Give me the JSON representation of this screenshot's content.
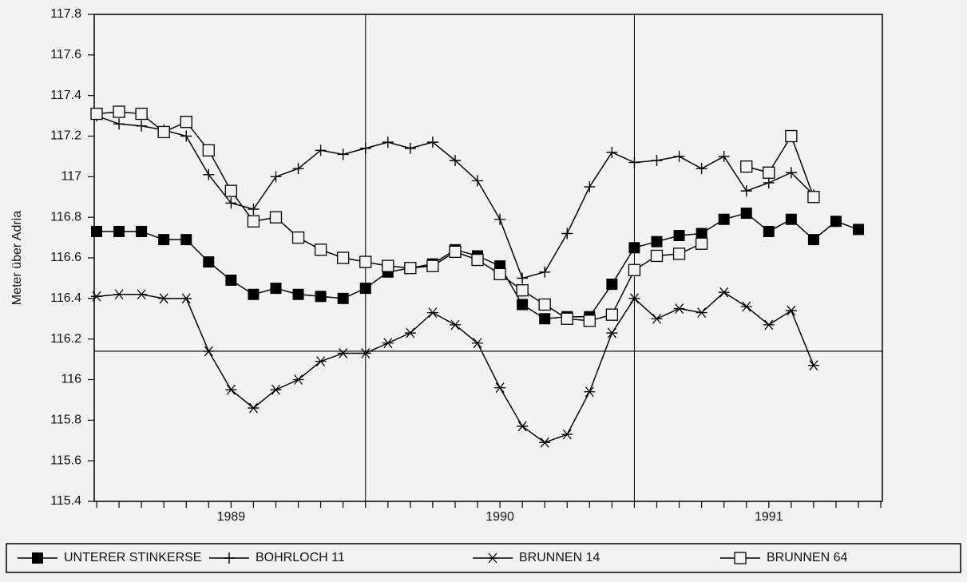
{
  "chart_data": {
    "type": "line",
    "y_label": "Meter über Adria",
    "categories": [
      null,
      null,
      null,
      null,
      null,
      null,
      "1989",
      null,
      null,
      null,
      null,
      null,
      null,
      null,
      null,
      null,
      null,
      null,
      "1990",
      null,
      null,
      null,
      null,
      null,
      null,
      null,
      null,
      null,
      null,
      null,
      "1991",
      null,
      null,
      null,
      null,
      null
    ],
    "ylim": [
      115.4,
      117.8
    ],
    "yticks": [
      115.4,
      115.6,
      115.8,
      116,
      116.2,
      116.4,
      116.6,
      116.8,
      117,
      117.2,
      117.4,
      117.6,
      117.8
    ],
    "reference_line": 116.14,
    "series": [
      {
        "name": "UNTERER STINKERSE",
        "color": "#000000",
        "marker": "filled-square",
        "values": [
          116.73,
          116.73,
          116.73,
          116.69,
          116.69,
          116.58,
          116.49,
          116.42,
          116.45,
          116.42,
          116.41,
          116.4,
          116.45,
          116.53,
          116.55,
          116.57,
          116.64,
          116.61,
          116.56,
          116.37,
          116.3,
          116.31,
          116.31,
          116.47,
          116.65,
          116.68,
          116.71,
          116.72,
          116.79,
          116.82,
          116.73,
          116.79,
          116.69,
          116.78,
          116.74,
          null
        ]
      },
      {
        "name": "BOHRLOCH 11",
        "color": "#000000",
        "marker": "plus",
        "values": [
          117.3,
          117.26,
          117.25,
          117.23,
          117.2,
          117.01,
          116.87,
          116.84,
          117.0,
          117.04,
          117.13,
          117.11,
          117.14,
          117.17,
          117.14,
          117.17,
          117.08,
          116.98,
          116.79,
          116.5,
          116.53,
          116.72,
          116.95,
          117.12,
          117.07,
          117.08,
          117.1,
          117.04,
          117.1,
          116.93,
          116.97,
          117.02,
          116.91,
          null,
          null,
          null
        ]
      },
      {
        "name": "BRUNNEN 14",
        "color": "#000000",
        "marker": "asterisk",
        "values": [
          116.41,
          116.42,
          116.42,
          116.4,
          116.4,
          116.14,
          115.95,
          115.86,
          115.95,
          116.0,
          116.09,
          116.13,
          116.13,
          116.18,
          116.23,
          116.33,
          116.27,
          116.18,
          115.96,
          115.77,
          115.69,
          115.73,
          115.94,
          116.23,
          116.4,
          116.3,
          116.35,
          116.33,
          116.43,
          116.36,
          116.27,
          116.34,
          116.07,
          null,
          null,
          null
        ]
      },
      {
        "name": "BRUNNEN 64",
        "color": "#000000",
        "marker": "open-square",
        "values": [
          117.31,
          117.32,
          117.31,
          117.22,
          117.27,
          117.13,
          116.93,
          116.78,
          116.8,
          116.7,
          116.64,
          116.6,
          116.58,
          116.56,
          116.55,
          116.56,
          116.63,
          116.59,
          116.52,
          116.44,
          116.37,
          116.3,
          116.29,
          116.32,
          116.54,
          116.61,
          116.62,
          116.67,
          null,
          117.05,
          117.02,
          117.2,
          116.9,
          null,
          null,
          null
        ]
      }
    ]
  }
}
